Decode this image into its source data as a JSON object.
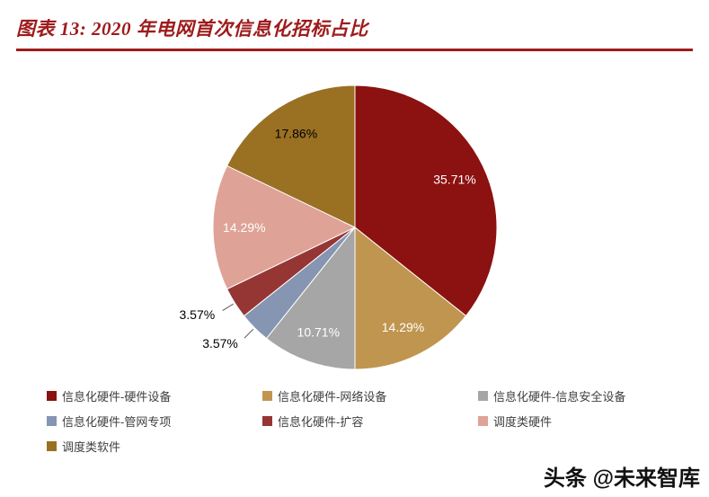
{
  "page": {
    "title": "图表 13: 2020 年电网首次信息化招标占比",
    "watermark": "头条 @未来智库",
    "accent_color": "#9E1B1B",
    "legend_text_color": "#3F3F3F"
  },
  "chart_data": {
    "type": "pie",
    "title": "2020 年电网首次信息化招标占比",
    "legend_position": "bottom",
    "start_angle_deg": 0,
    "direction": "clockwise",
    "slices": [
      {
        "name": "信息化硬件-硬件设备",
        "value": 35.71,
        "label": "35.71%",
        "color": "#8C1111",
        "label_color": "#FFFFFF",
        "label_pos": "inside"
      },
      {
        "name": "信息化硬件-网络设备",
        "value": 14.29,
        "label": "14.29%",
        "color": "#C0954F",
        "label_color": "#FFFFFF",
        "label_pos": "inside"
      },
      {
        "name": "信息化硬件-信息安全设备",
        "value": 10.71,
        "label": "10.71%",
        "color": "#A6A6A6",
        "label_color": "#FFFFFF",
        "label_pos": "inside"
      },
      {
        "name": "信息化硬件-管网专项",
        "value": 3.57,
        "label": "3.57%",
        "color": "#8595B2",
        "label_color": "#000000",
        "label_pos": "outside"
      },
      {
        "name": "信息化硬件-扩容",
        "value": 3.57,
        "label": "3.57%",
        "color": "#963634",
        "label_color": "#000000",
        "label_pos": "outside"
      },
      {
        "name": "调度类硬件",
        "value": 14.29,
        "label": "14.29%",
        "color": "#DFA297",
        "label_color": "#FFFFFF",
        "label_pos": "inside"
      },
      {
        "name": "调度类软件",
        "value": 17.86,
        "label": "17.86%",
        "color": "#9A7023",
        "label_color": "#000000",
        "label_pos": "inside"
      }
    ]
  }
}
